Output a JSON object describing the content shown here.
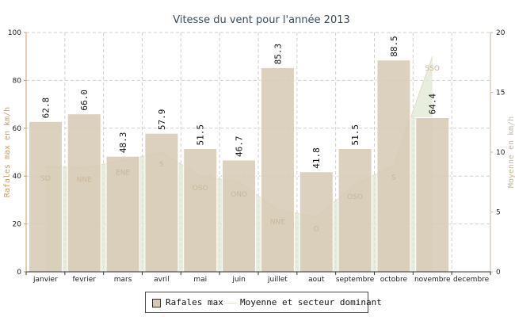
{
  "chart_data": {
    "type": "bar",
    "title": "Vitesse du vent pour l'année 2013",
    "ylabel": "Rafales max en km/h",
    "y2label": "Moyenne en km/h",
    "ylim": [
      0,
      100
    ],
    "y2lim": [
      0,
      20
    ],
    "yticks": [
      "0",
      "20",
      "40",
      "60",
      "80",
      "100"
    ],
    "y2ticks": [
      "0",
      "5",
      "10",
      "15",
      "20"
    ],
    "grid": true,
    "legend_position": "bottom",
    "categories": [
      "janvier",
      "fevrier",
      "mars",
      "avril",
      "mai",
      "juin",
      "juillet",
      "aout",
      "septembre",
      "octobre",
      "novembre",
      "decembre"
    ],
    "series": [
      {
        "name": "Rafales max",
        "type": "bar",
        "axis": "left",
        "color": "#d6c9b4",
        "values": [
          62.8,
          66.0,
          48.3,
          57.9,
          51.5,
          46.7,
          85.3,
          41.8,
          51.5,
          88.5,
          64.4,
          null
        ],
        "labels": [
          "62.8",
          "66.0",
          "48.3",
          "57.9",
          "51.5",
          "46.7",
          "85.3",
          "41.8",
          "51.5",
          "88.5",
          "64.4",
          ""
        ]
      },
      {
        "name": "Moyenne et secteur dominant",
        "type": "area",
        "axis": "right",
        "color": "#dfe8d2",
        "values": [
          8.8,
          8.7,
          9.3,
          10.0,
          8.0,
          7.5,
          5.2,
          4.6,
          7.3,
          8.9,
          18.0,
          null
        ],
        "sectors": [
          "SO",
          "NNE",
          "ENE",
          "S",
          "OSO",
          "ONO",
          "NNE",
          "O",
          "OSO",
          "S",
          "SSO",
          ""
        ]
      }
    ]
  }
}
